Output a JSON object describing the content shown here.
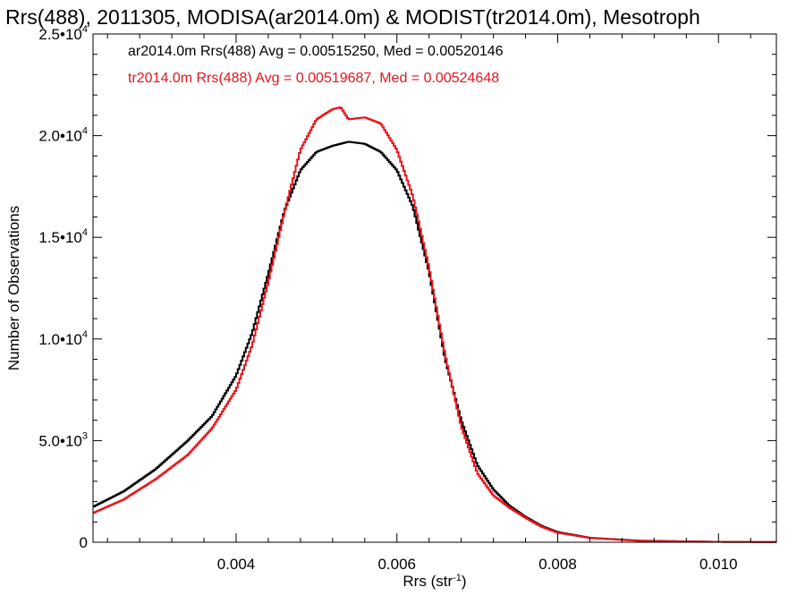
{
  "chart_data": {
    "type": "line",
    "title": "Rrs(488), 2011305, MODISA(ar2014.0m) & MODIST(tr2014.0m), Mesotroph",
    "xlabel_base": "Rrs (str",
    "xlabel_sup": "-1",
    "xlabel_close": ")",
    "ylabel": "Number of Observations",
    "xlim": [
      0.00222,
      0.01072
    ],
    "ylim": [
      0,
      25000
    ],
    "x_ticks": [
      {
        "value": 0.004,
        "label": "0.004"
      },
      {
        "value": 0.006,
        "label": "0.006"
      },
      {
        "value": 0.008,
        "label": "0.008"
      },
      {
        "value": 0.01,
        "label": "0.010"
      }
    ],
    "y_ticks": [
      {
        "value": 0,
        "mant": "0",
        "exp": ""
      },
      {
        "value": 5000,
        "mant": "5.0•10",
        "exp": "3"
      },
      {
        "value": 10000,
        "mant": "1.0•10",
        "exp": "4"
      },
      {
        "value": 15000,
        "mant": "1.5•10",
        "exp": "4"
      },
      {
        "value": 20000,
        "mant": "2.0•10",
        "exp": "4"
      },
      {
        "value": 25000,
        "mant": "2.5•10",
        "exp": "4"
      }
    ],
    "annotations": [
      {
        "text": "ar2014.0m Rrs(488) Avg = 0.00515250, Med = 0.00520146",
        "color": "#000000"
      },
      {
        "text": "tr2014.0m Rrs(488) Avg = 0.00519687, Med = 0.00524648",
        "color": "#e8141b"
      }
    ],
    "series": [
      {
        "color": "#000000",
        "x": [
          0.0022,
          0.0026,
          0.003,
          0.0034,
          0.0037,
          0.004,
          0.0042,
          0.0044,
          0.0046,
          0.0048,
          0.005,
          0.0052,
          0.0054,
          0.0056,
          0.0058,
          0.006,
          0.0062,
          0.0064,
          0.0066,
          0.0068,
          0.007,
          0.0072,
          0.0074,
          0.0076,
          0.0078,
          0.008,
          0.0084,
          0.009,
          0.01,
          0.0107
        ],
        "y": [
          1700,
          2500,
          3600,
          5000,
          6200,
          8200,
          10300,
          13200,
          16300,
          18300,
          19200,
          19500,
          19700,
          19600,
          19200,
          18300,
          16500,
          13300,
          9000,
          6000,
          3800,
          2600,
          1800,
          1250,
          800,
          500,
          220,
          80,
          20,
          10
        ]
      },
      {
        "color": "#e8141b",
        "x": [
          0.0022,
          0.0026,
          0.003,
          0.0034,
          0.0037,
          0.004,
          0.0042,
          0.0044,
          0.0046,
          0.0048,
          0.005,
          0.0052,
          0.0053,
          0.0054,
          0.0056,
          0.0058,
          0.006,
          0.0062,
          0.0064,
          0.0066,
          0.0068,
          0.007,
          0.0072,
          0.0074,
          0.0076,
          0.0078,
          0.008,
          0.0084,
          0.009,
          0.01,
          0.0107
        ],
        "y": [
          1400,
          2100,
          3100,
          4300,
          5600,
          7500,
          9700,
          12800,
          16200,
          19300,
          20800,
          21300,
          21400,
          20800,
          20900,
          20600,
          19300,
          17000,
          13500,
          9200,
          5700,
          3400,
          2300,
          1700,
          1200,
          760,
          470,
          210,
          70,
          20,
          10
        ]
      }
    ]
  }
}
